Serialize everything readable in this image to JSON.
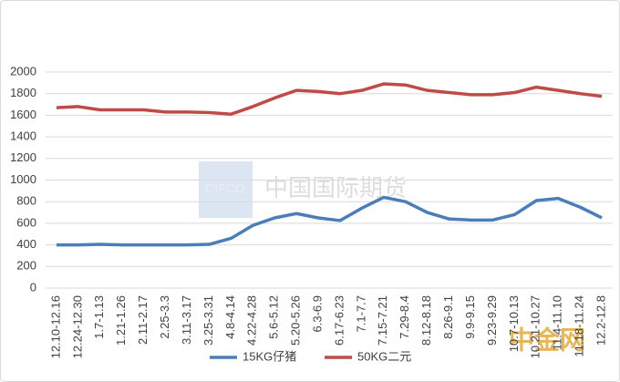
{
  "chart_data": {
    "type": "line",
    "categories": [
      "12.10-12.16",
      "12.24-12.30",
      "1.7-1.13",
      "1.21-1.26",
      "2.11-2.17",
      "2.25-3.3",
      "3.11-3.17",
      "3.25-3.31",
      "4.8-4.14",
      "4.22-4.28",
      "5.6-5.12",
      "5.20-5.26",
      "6.3-6.9",
      "6.17-6.23",
      "7.1-7.7",
      "7.15-7.21",
      "7.29-8.4",
      "8.12-8.18",
      "8.26-9.1",
      "9.9-9.15",
      "9.23-9.29",
      "10.7-10.13",
      "10.21-10.27",
      "11.4-11.10",
      "11.18-11.24",
      "12.2-12.8"
    ],
    "series": [
      {
        "name": "15KG仔猪",
        "color": "#4a7ebb",
        "values": [
          400,
          400,
          405,
          400,
          400,
          400,
          400,
          405,
          460,
          580,
          650,
          690,
          650,
          625,
          740,
          840,
          800,
          700,
          640,
          630,
          630,
          680,
          810,
          830,
          750,
          650
        ]
      },
      {
        "name": "50KG二元",
        "color": "#be4b48",
        "values": [
          1670,
          1680,
          1650,
          1650,
          1650,
          1630,
          1630,
          1625,
          1610,
          1680,
          1760,
          1830,
          1820,
          1800,
          1830,
          1890,
          1880,
          1830,
          1810,
          1790,
          1790,
          1810,
          1860,
          1830,
          1800,
          1775
        ]
      }
    ],
    "ylim": [
      0,
      2000
    ],
    "yticks": [
      0,
      200,
      400,
      600,
      800,
      1000,
      1200,
      1400,
      1600,
      1800,
      2000
    ],
    "grid": true,
    "legend": "bottom",
    "annotations": [
      "CIFCO",
      "中国国际期货",
      "中金网"
    ]
  }
}
